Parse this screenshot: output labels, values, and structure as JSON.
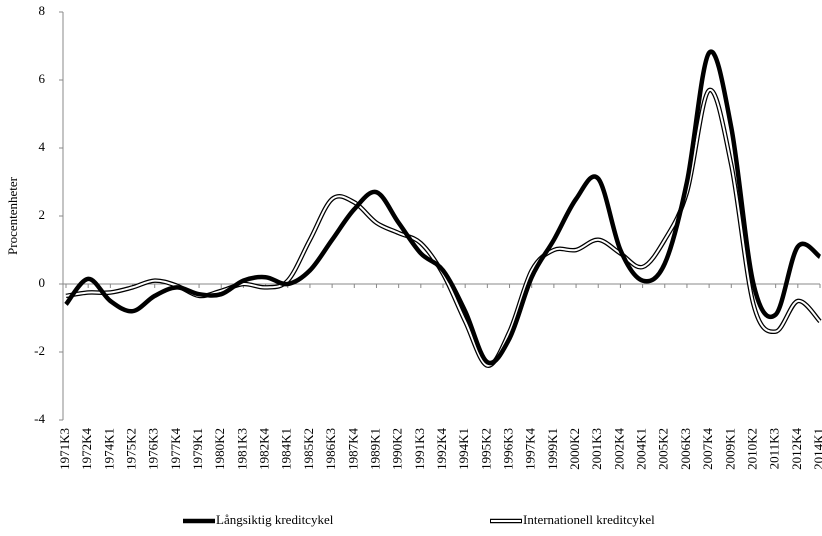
{
  "chart_data": {
    "type": "line",
    "y_label": "Procentenheter",
    "categories": [
      "1971K3",
      "1972K4",
      "1974K1",
      "1975K2",
      "1976K3",
      "1977K4",
      "1979K1",
      "1980K2",
      "1981K3",
      "1982K4",
      "1984K1",
      "1985K2",
      "1986K3",
      "1987K4",
      "1989K1",
      "1990K2",
      "1991K3",
      "1992K4",
      "1994K1",
      "1995K2",
      "1996K3",
      "1997K4",
      "1999K1",
      "2000K2",
      "2001K3",
      "2002K4",
      "2004K1",
      "2005K2",
      "2006K3",
      "2007K4",
      "2009K1",
      "2010K2",
      "2011K3",
      "2012K4",
      "2014K1"
    ],
    "series": [
      {
        "name": "Långsiktig kreditcykel",
        "color": "#000000",
        "style": "solid",
        "values": [
          -0.6,
          0.15,
          -0.5,
          -0.8,
          -0.35,
          -0.1,
          -0.3,
          -0.3,
          0.1,
          0.2,
          0.0,
          0.4,
          1.3,
          2.2,
          2.7,
          1.8,
          0.9,
          0.4,
          -0.8,
          -2.3,
          -1.6,
          0.2,
          1.3,
          2.5,
          3.1,
          1.0,
          0.1,
          0.6,
          3.0,
          6.8,
          4.6,
          0.0,
          -0.9,
          1.1,
          0.8
        ]
      },
      {
        "name": "Internationell kreditcykel",
        "color": "#000000",
        "style": "double",
        "values": [
          -0.35,
          -0.25,
          -0.25,
          -0.1,
          0.1,
          -0.05,
          -0.35,
          -0.2,
          0.0,
          -0.1,
          0.1,
          1.3,
          2.5,
          2.4,
          1.8,
          1.5,
          1.2,
          0.3,
          -1.1,
          -2.4,
          -1.4,
          0.4,
          1.0,
          1.0,
          1.3,
          0.9,
          0.5,
          1.3,
          2.7,
          5.7,
          3.5,
          -0.6,
          -1.4,
          -0.5,
          -1.1
        ]
      }
    ],
    "ylim": [
      -4,
      8
    ],
    "yticks": [
      -4,
      -2,
      0,
      2,
      4,
      6,
      8
    ],
    "zero_line": true,
    "legend": "bottom"
  }
}
